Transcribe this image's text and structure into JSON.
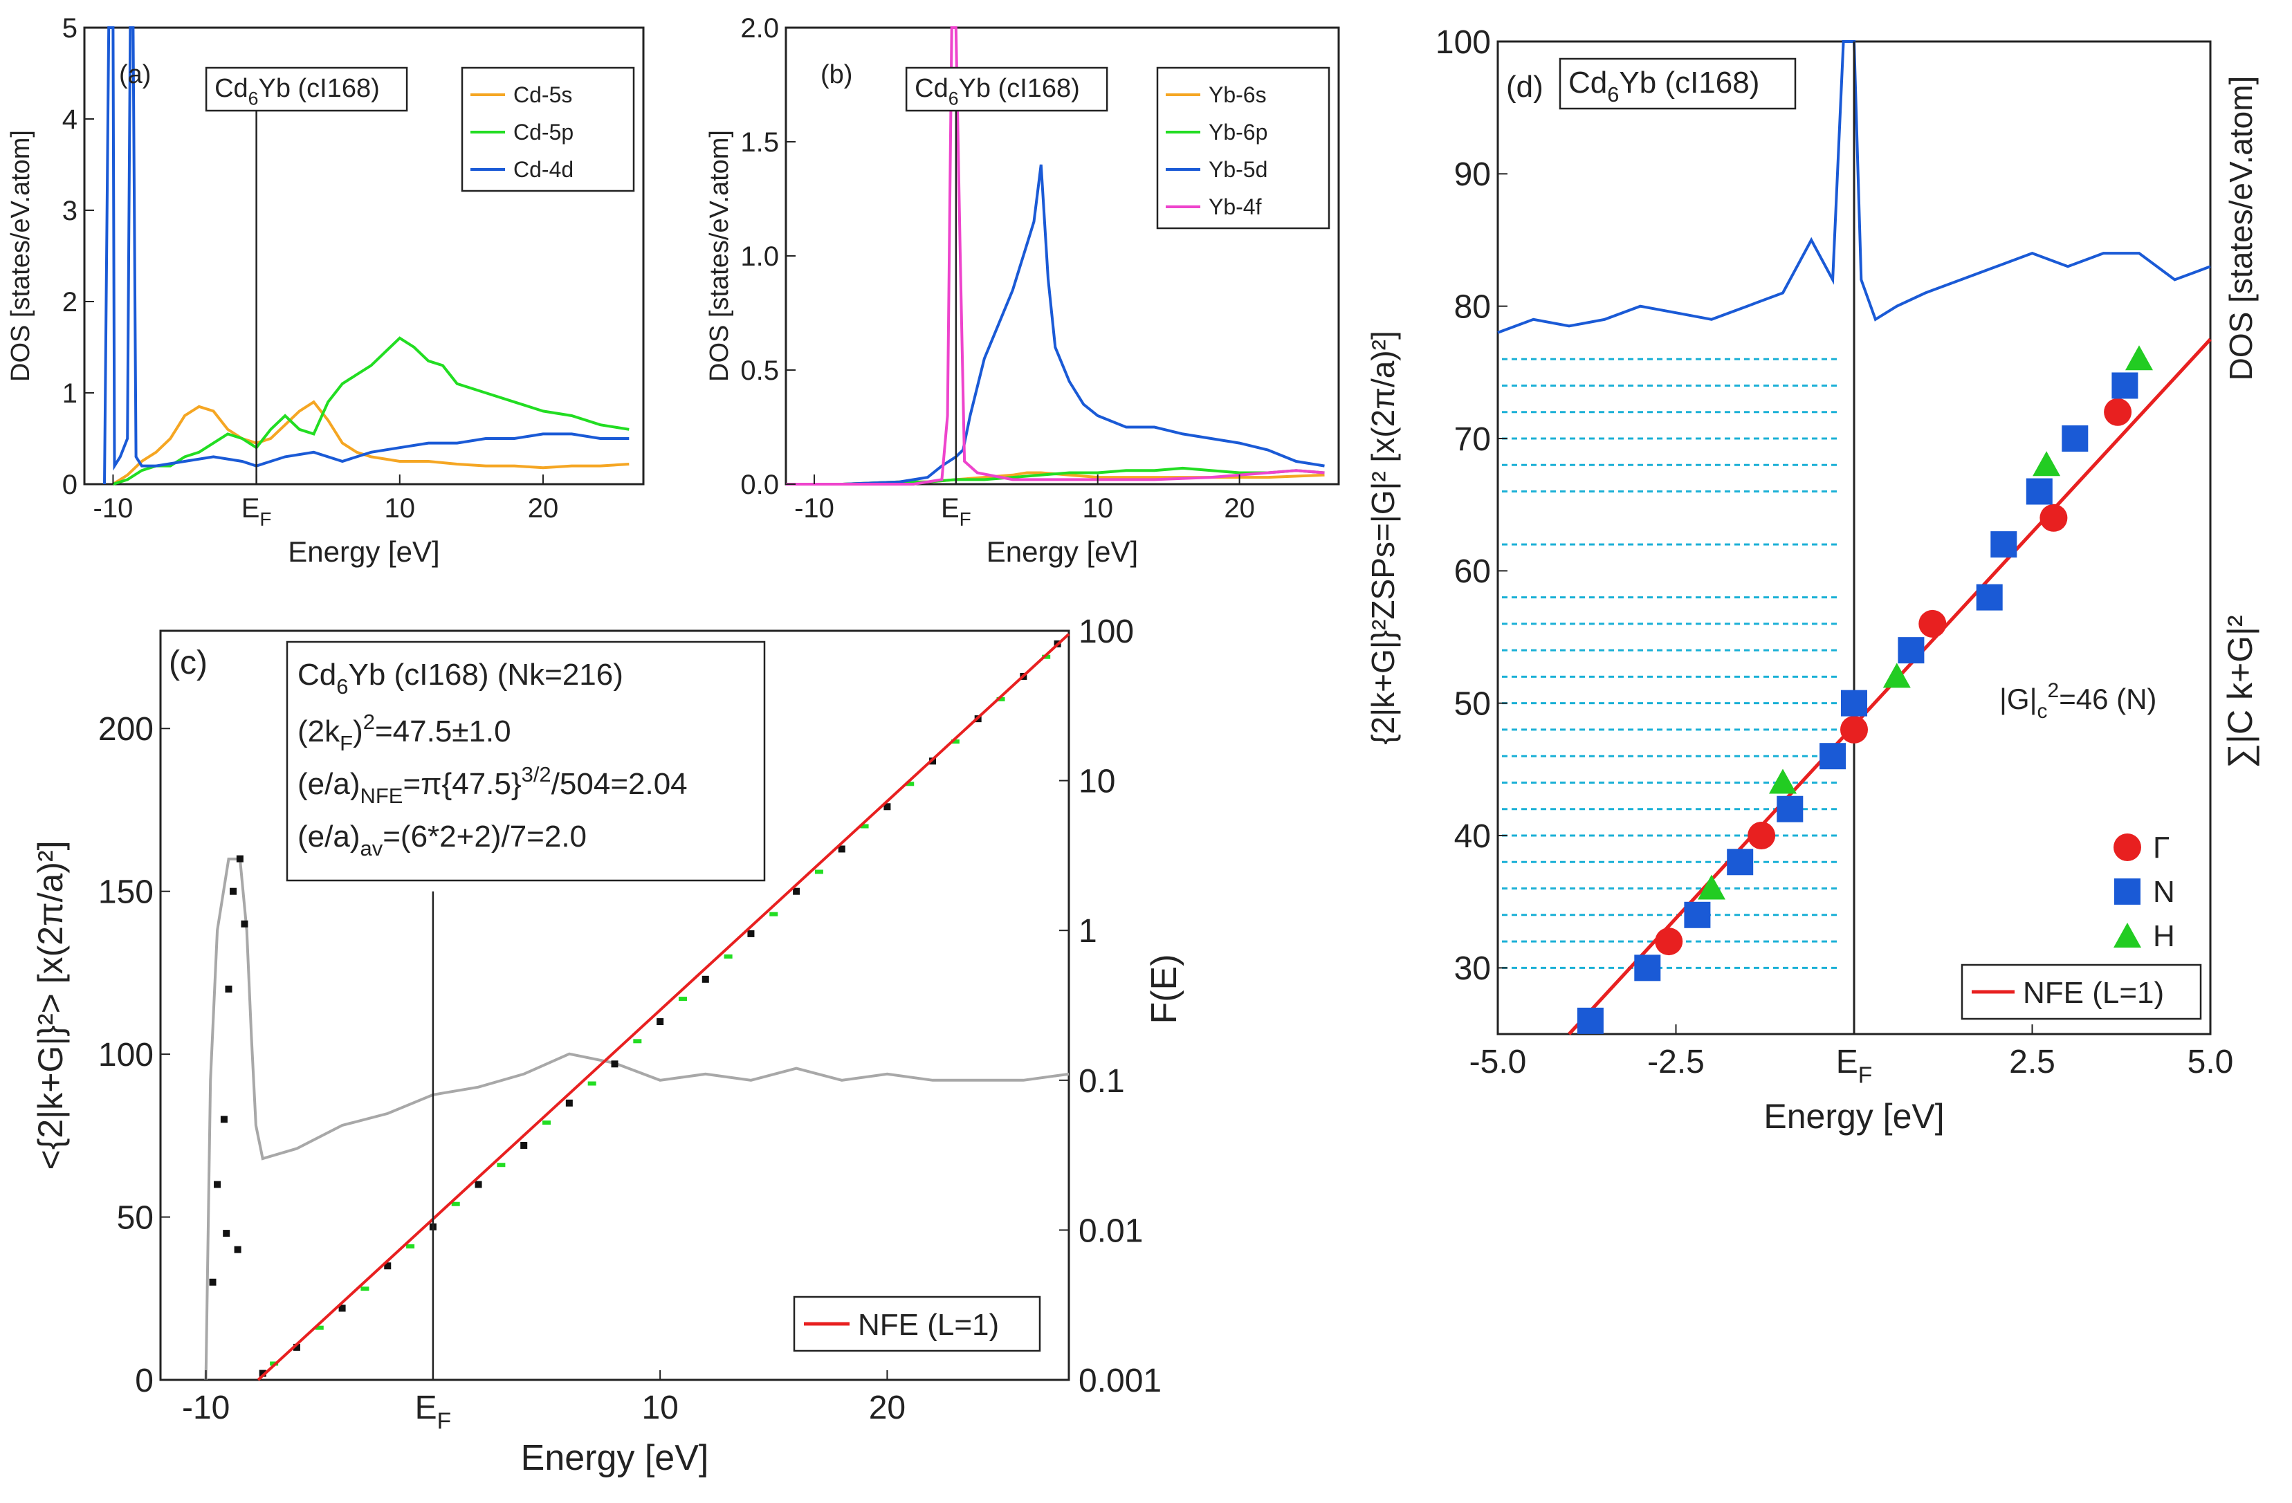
{
  "figure_caption": "",
  "chart_data": [
    {
      "id": "a",
      "type": "line",
      "panel_label": "(a)",
      "compound_base": "Cd",
      "compound_sub": "6",
      "compound_rest": "Yb (cI168)",
      "xlabel": "Energy [eV]",
      "ylabel": "DOS [states/eV.atom]",
      "xlim": [
        -12,
        27
      ],
      "ylim": [
        0,
        5
      ],
      "xticks": [
        {
          "value": -10,
          "label": "-10"
        },
        {
          "value": 0,
          "label": "E",
          "sub": "F"
        },
        {
          "value": 10,
          "label": "10"
        },
        {
          "value": 20,
          "label": "20"
        }
      ],
      "yticks": [
        {
          "value": 0,
          "label": "0"
        },
        {
          "value": 1,
          "label": "1"
        },
        {
          "value": 2,
          "label": "2"
        },
        {
          "value": 3,
          "label": "3"
        },
        {
          "value": 4,
          "label": "4"
        },
        {
          "value": 5,
          "label": "5"
        }
      ],
      "series": [
        {
          "name": "Cd-5s",
          "color": "#f5a623",
          "x": [
            -10,
            -9,
            -8,
            -7,
            -6,
            -5,
            -4,
            -3,
            -2,
            -1,
            0,
            1,
            2,
            3,
            4,
            5,
            6,
            7,
            8,
            10,
            12,
            14,
            16,
            18,
            20,
            22,
            24,
            26
          ],
          "y": [
            0,
            0.1,
            0.25,
            0.35,
            0.5,
            0.75,
            0.85,
            0.8,
            0.6,
            0.5,
            0.45,
            0.5,
            0.65,
            0.8,
            0.9,
            0.7,
            0.45,
            0.35,
            0.3,
            0.25,
            0.25,
            0.22,
            0.2,
            0.2,
            0.18,
            0.2,
            0.2,
            0.22
          ]
        },
        {
          "name": "Cd-5p",
          "color": "#22dd22",
          "x": [
            -10,
            -9,
            -8,
            -7,
            -6,
            -5,
            -4,
            -3,
            -2,
            -1,
            0,
            1,
            2,
            3,
            4,
            5,
            6,
            7,
            8,
            9,
            10,
            11,
            12,
            13,
            14,
            16,
            18,
            20,
            22,
            24,
            26
          ],
          "y": [
            0,
            0.05,
            0.15,
            0.2,
            0.2,
            0.3,
            0.35,
            0.45,
            0.55,
            0.5,
            0.4,
            0.6,
            0.75,
            0.6,
            0.55,
            0.9,
            1.1,
            1.2,
            1.3,
            1.45,
            1.6,
            1.5,
            1.35,
            1.3,
            1.1,
            1.0,
            0.9,
            0.8,
            0.75,
            0.65,
            0.6
          ]
        },
        {
          "name": "Cd-4d",
          "color": "#1a5ad6",
          "x": [
            -10.6,
            -10.3,
            -10.0,
            -9.9,
            -9.5,
            -9.0,
            -8.8,
            -8.6,
            -8.4,
            -8.0,
            -7,
            -5,
            -3,
            -1,
            0,
            2,
            4,
            6,
            8,
            10,
            12,
            14,
            16,
            18,
            20,
            22,
            24,
            26
          ],
          "y": [
            0,
            5,
            5,
            0.2,
            0.3,
            0.5,
            5,
            5,
            0.3,
            0.2,
            0.2,
            0.25,
            0.3,
            0.25,
            0.2,
            0.3,
            0.35,
            0.25,
            0.35,
            0.4,
            0.45,
            0.45,
            0.5,
            0.5,
            0.55,
            0.55,
            0.5,
            0.5
          ]
        }
      ]
    },
    {
      "id": "b",
      "type": "line",
      "panel_label": "(b)",
      "compound_base": "Cd",
      "compound_sub": "6",
      "compound_rest": "Yb (cI168)",
      "xlabel": "Energy [eV]",
      "ylabel": "DOS [states/eV.atom]",
      "xlim": [
        -12,
        27
      ],
      "ylim": [
        0,
        2
      ],
      "xticks": [
        {
          "value": -10,
          "label": "-10"
        },
        {
          "value": 0,
          "label": "E",
          "sub": "F"
        },
        {
          "value": 10,
          "label": "10"
        },
        {
          "value": 20,
          "label": "20"
        }
      ],
      "yticks": [
        {
          "value": 0,
          "label": "0.0"
        },
        {
          "value": 0.5,
          "label": "0.5"
        },
        {
          "value": 1,
          "label": "1.0"
        },
        {
          "value": 1.5,
          "label": "1.5"
        },
        {
          "value": 2,
          "label": "2.0"
        }
      ],
      "series": [
        {
          "name": "Yb-6s",
          "color": "#f5a623",
          "x": [
            -12,
            -8,
            -4,
            -2,
            0,
            2,
            4,
            5,
            6,
            8,
            10,
            14,
            18,
            22,
            26
          ],
          "y": [
            0,
            0,
            0.01,
            0.01,
            0.02,
            0.03,
            0.04,
            0.05,
            0.05,
            0.04,
            0.03,
            0.03,
            0.03,
            0.03,
            0.04
          ]
        },
        {
          "name": "Yb-6p",
          "color": "#22dd22",
          "x": [
            -12,
            -8,
            -4,
            -2,
            0,
            2,
            4,
            6,
            8,
            10,
            12,
            14,
            16,
            18,
            20,
            22,
            24,
            26
          ],
          "y": [
            0,
            0,
            0.01,
            0.01,
            0.02,
            0.02,
            0.03,
            0.04,
            0.05,
            0.05,
            0.06,
            0.06,
            0.07,
            0.06,
            0.05,
            0.05,
            0.06,
            0.05
          ]
        },
        {
          "name": "Yb-5d",
          "color": "#1a5ad6",
          "x": [
            -12,
            -8,
            -4,
            -2,
            -1,
            0,
            0.5,
            1,
            2,
            3,
            4,
            4.5,
            5,
            5.5,
            6,
            6.5,
            7,
            8,
            9,
            10,
            12,
            14,
            16,
            18,
            20,
            22,
            24,
            26
          ],
          "y": [
            0,
            0,
            0.01,
            0.03,
            0.08,
            0.12,
            0.15,
            0.3,
            0.55,
            0.7,
            0.85,
            0.95,
            1.05,
            1.15,
            1.4,
            0.9,
            0.6,
            0.45,
            0.35,
            0.3,
            0.25,
            0.25,
            0.22,
            0.2,
            0.18,
            0.15,
            0.1,
            0.08
          ]
        },
        {
          "name": "Yb-4f",
          "color": "#ee44cc",
          "x": [
            -12,
            -3,
            -1,
            -0.6,
            -0.3,
            0,
            0.3,
            0.6,
            1.5,
            4,
            10,
            14,
            18,
            20,
            22,
            24,
            26
          ],
          "y": [
            0,
            0,
            0.02,
            0.3,
            2,
            2,
            1,
            0.1,
            0.05,
            0.02,
            0.02,
            0.02,
            0.03,
            0.04,
            0.05,
            0.06,
            0.05
          ]
        }
      ]
    },
    {
      "id": "c",
      "type": "scatter",
      "panel_label": "(c)",
      "info_lines": [
        {
          "base": "Cd",
          "sub": "6",
          "rest": "Yb (cI168) (Nk=216)"
        },
        {
          "a": "(2k",
          "b": "F",
          "c": ")",
          "d": "2",
          "e": "=47.5±1.0"
        },
        {
          "a": "(e/a)",
          "b": "NFE",
          "c": "=π{47.5}",
          "d": "3/2",
          "e": "/504=2.04"
        },
        {
          "a": "(e/a)",
          "b": "av",
          "c": "=(6*2+2)/7=2.0"
        }
      ],
      "xlabel": "Energy [eV]",
      "ylabel": "<{2|k+G|}²> [x(2π/a)²]",
      "y2label": "F(E)",
      "xlim": [
        -12,
        28
      ],
      "ylim": [
        0,
        230
      ],
      "y2lim": [
        0.001,
        100
      ],
      "y2scale": "log",
      "xticks": [
        {
          "value": -10,
          "label": "-10"
        },
        {
          "value": 0,
          "label": "E",
          "sub": "F"
        },
        {
          "value": 10,
          "label": "10"
        },
        {
          "value": 20,
          "label": "20"
        }
      ],
      "yticks": [
        {
          "value": 0,
          "label": "0"
        },
        {
          "value": 50,
          "label": "50"
        },
        {
          "value": 100,
          "label": "100"
        },
        {
          "value": 150,
          "label": "150"
        },
        {
          "value": 200,
          "label": "200"
        }
      ],
      "y2ticks": [
        {
          "value": 0.001,
          "label": "0.001"
        },
        {
          "value": 0.01,
          "label": "0.01"
        },
        {
          "value": 0.1,
          "label": "0.1"
        },
        {
          "value": 1,
          "label": "1"
        },
        {
          "value": 10,
          "label": "10"
        },
        {
          "value": 100,
          "label": "100"
        }
      ],
      "legend": [
        {
          "name": "NFE (L=1)",
          "color": "#e82020"
        }
      ],
      "nfe_line": {
        "color": "#e82020",
        "x": [
          -7.7,
          28
        ],
        "y": [
          0,
          229
        ]
      },
      "black_points": {
        "color": "#111111",
        "x": [
          -7.5,
          -6,
          -4,
          -2,
          0,
          2,
          4,
          6,
          8,
          10,
          12,
          14,
          16,
          18,
          20,
          22,
          24,
          26,
          27.5,
          -9.5,
          -9.2,
          -9.0,
          -8.8,
          -8.5,
          -8.3,
          -9.7,
          -9.1,
          -8.6
        ],
        "y": [
          2,
          10,
          22,
          35,
          47,
          60,
          72,
          85,
          97,
          110,
          123,
          137,
          150,
          163,
          176,
          190,
          203,
          216,
          226,
          60,
          80,
          120,
          150,
          160,
          140,
          30,
          45,
          40
        ]
      },
      "green_points": {
        "color": "#22dd22",
        "x": [
          -7,
          -5,
          -3,
          -1,
          1,
          3,
          5,
          7,
          9,
          11,
          13,
          15,
          17,
          19,
          21,
          23,
          25,
          27
        ],
        "y": [
          5,
          16,
          28,
          41,
          54,
          66,
          79,
          91,
          104,
          117,
          130,
          143,
          156,
          170,
          183,
          196,
          209,
          222
        ]
      },
      "gray_series": {
        "color": "#a8a8a8",
        "x": [
          -10,
          -9.8,
          -9.5,
          -9,
          -8.5,
          -8.2,
          -8,
          -7.8,
          -7.5,
          -6,
          -4,
          -2,
          0,
          2,
          4,
          6,
          8,
          10,
          12,
          14,
          16,
          18,
          20,
          22,
          24,
          26,
          28
        ],
        "y": [
          0.001,
          0.1,
          1,
          3,
          3,
          1,
          0.2,
          0.05,
          0.03,
          0.035,
          0.05,
          0.06,
          0.08,
          0.09,
          0.11,
          0.15,
          0.13,
          0.1,
          0.11,
          0.1,
          0.12,
          0.1,
          0.11,
          0.1,
          0.1,
          0.1,
          0.11
        ]
      }
    },
    {
      "id": "d",
      "type": "scatter",
      "panel_label": "(d)",
      "compound_base": "Cd",
      "compound_sub": "6",
      "compound_rest": "Yb (cI168)",
      "xlabel": "Energy [eV]",
      "ylabel": "{2|k+G|}²ZSPs=|G|² [x(2π/a)²]",
      "y2label_top": "DOS [states/eV.atom]",
      "y2label_bottom": "∑|C k+G|²",
      "xlim": [
        -5,
        5
      ],
      "ylim": [
        25,
        100
      ],
      "xticks": [
        {
          "value": -5,
          "label": "-5.0"
        },
        {
          "value": -2.5,
          "label": "-2.5"
        },
        {
          "value": 0,
          "label": "E",
          "sub": "F"
        },
        {
          "value": 2.5,
          "label": "2.5"
        },
        {
          "value": 5,
          "label": "5.0"
        }
      ],
      "yticks": [
        {
          "value": 30,
          "label": "30"
        },
        {
          "value": 40,
          "label": "40"
        },
        {
          "value": 50,
          "label": "50"
        },
        {
          "value": 60,
          "label": "60"
        },
        {
          "value": 70,
          "label": "70"
        },
        {
          "value": 80,
          "label": "80"
        },
        {
          "value": 90,
          "label": "90"
        },
        {
          "value": 100,
          "label": "100"
        }
      ],
      "annotation": {
        "text_a": "|G|",
        "text_b": "c",
        "text_c": "2",
        "text_d": "=46 (N)",
        "color": "#1a5ad6"
      },
      "legend": [
        {
          "name": "Γ",
          "marker": "circle",
          "color": "#e82020"
        },
        {
          "name": "N",
          "marker": "square",
          "color": "#1a5ad6"
        },
        {
          "name": "H",
          "marker": "triangle",
          "color": "#22cc22"
        },
        {
          "name": "NFE (L=1)",
          "marker": "line",
          "color": "#e82020"
        }
      ],
      "nfe_line": {
        "color": "#e82020",
        "x": [
          -4,
          5
        ],
        "y": [
          25,
          77.5
        ]
      },
      "dos_series": {
        "color": "#1a5ad6",
        "x": [
          -5,
          -4.5,
          -4,
          -3.5,
          -3,
          -2.5,
          -2,
          -1.5,
          -1,
          -0.6,
          -0.3,
          -0.15,
          0,
          0.1,
          0.3,
          0.6,
          1,
          1.5,
          2,
          2.5,
          3,
          3.5,
          4,
          4.5,
          5
        ],
        "y": [
          78,
          79,
          78.5,
          79,
          80,
          79.5,
          79,
          80,
          81,
          85,
          82,
          100,
          100,
          82,
          79,
          80,
          81,
          82,
          83,
          84,
          83,
          84,
          84,
          82,
          83
        ]
      },
      "gamma_points": {
        "color": "#e82020",
        "marker": "circle",
        "x": [
          -2.6,
          -1.3,
          0,
          1.1,
          2.8,
          3.7
        ],
        "y": [
          32,
          40,
          48,
          56,
          64,
          72
        ]
      },
      "n_points": {
        "color": "#1a5ad6",
        "marker": "square",
        "x": [
          -3.7,
          -2.9,
          -2.2,
          -1.6,
          -0.9,
          -0.3,
          0,
          0.8,
          1.9,
          2.1,
          2.6,
          3.1,
          3.8
        ],
        "y": [
          26,
          30,
          34,
          38,
          42,
          46,
          50,
          54,
          58,
          62,
          66,
          70,
          74
        ]
      },
      "h_points": {
        "color": "#22cc22",
        "marker": "triangle",
        "x": [
          -2.0,
          -1.0,
          0.6,
          2.7,
          4.0
        ],
        "y": [
          36,
          44,
          52,
          68,
          76
        ]
      },
      "dotted_levels": {
        "color": "#1ab0d6",
        "y": [
          30,
          32,
          34,
          36,
          38,
          40,
          42,
          44,
          46,
          48,
          50,
          52,
          54,
          56,
          58,
          62,
          66,
          68,
          70,
          72,
          74,
          76
        ]
      }
    }
  ]
}
